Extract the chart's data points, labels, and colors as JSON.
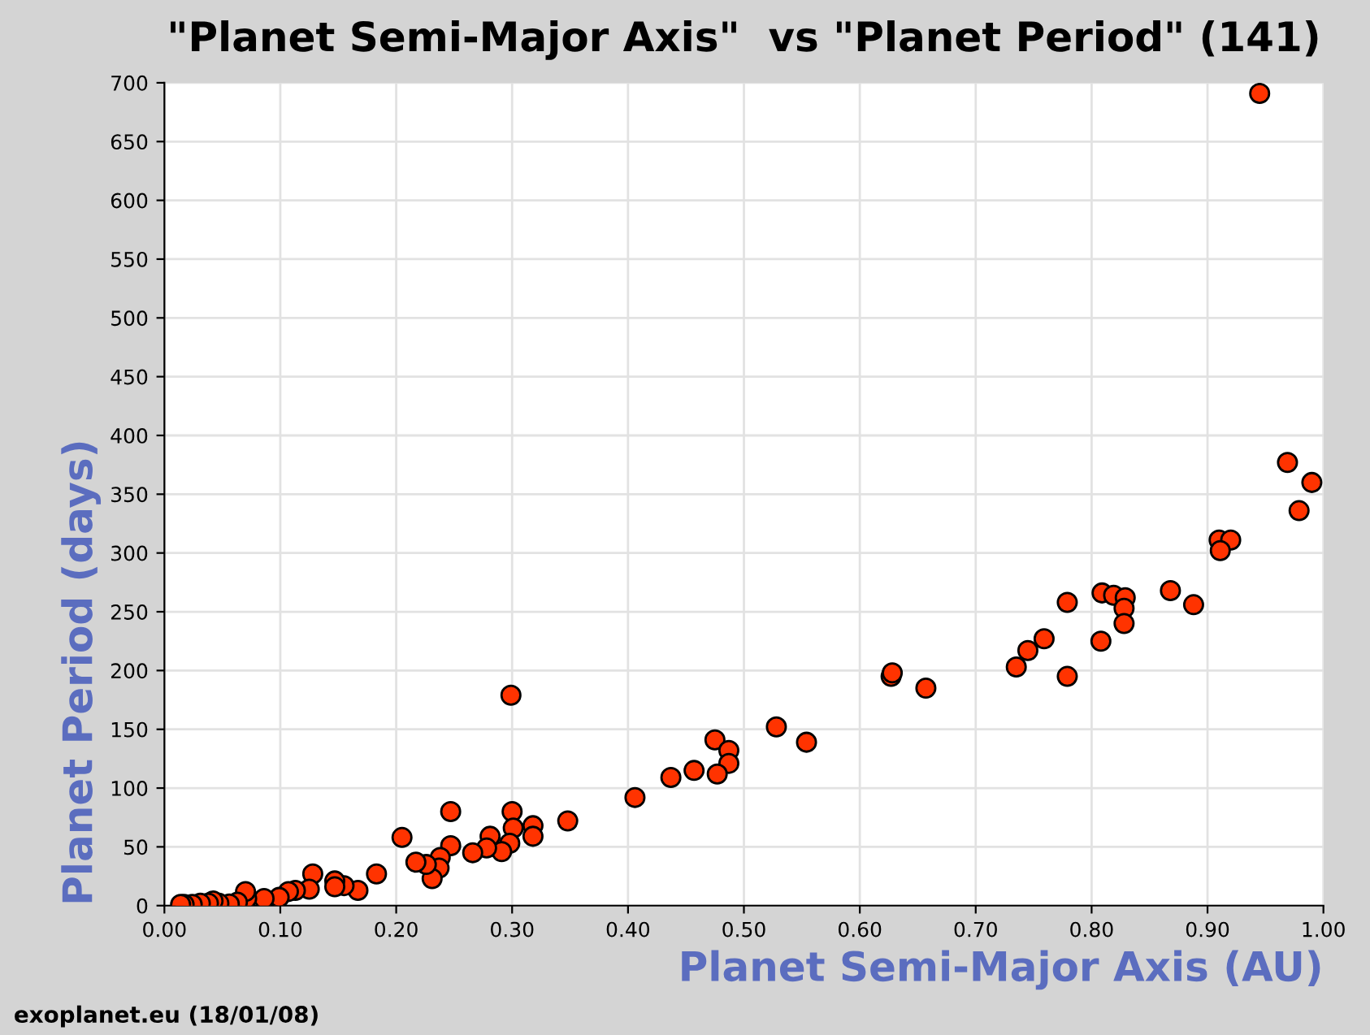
{
  "chart_data": {
    "type": "scatter",
    "title": "\"Planet Semi-Major Axis\"  vs \"Planet Period\" (141)",
    "xlabel": "Planet Semi-Major Axis (AU)",
    "ylabel": "Planet Period (days)",
    "annotations": [
      "exoplanet.eu (18/01/08)"
    ],
    "series": [
      {
        "color": "#ff3300",
        "x": [
          0.945,
          0.969,
          0.99,
          0.979,
          0.91,
          0.92,
          0.911,
          0.868,
          0.888,
          0.809,
          0.819,
          0.829,
          0.828,
          0.828,
          0.779,
          0.808,
          0.759,
          0.745,
          0.735,
          0.779,
          0.627,
          0.628,
          0.657,
          0.528,
          0.554,
          0.475,
          0.487,
          0.487,
          0.477,
          0.457,
          0.437,
          0.406,
          0.299,
          0.348,
          0.318,
          0.318,
          0.3,
          0.301,
          0.298,
          0.291,
          0.281,
          0.278,
          0.266,
          0.247,
          0.247,
          0.238,
          0.237,
          0.231,
          0.226,
          0.217,
          0.205,
          0.183,
          0.167,
          0.155,
          0.147,
          0.147,
          0.128,
          0.125,
          0.113,
          0.107,
          0.099,
          0.086,
          0.071,
          0.07,
          0.063,
          0.056,
          0.047,
          0.042,
          0.038,
          0.031,
          0.024,
          0.017,
          0.014
        ],
        "values": [
          691,
          377,
          360,
          336,
          311,
          311,
          302,
          268,
          256,
          266,
          264,
          262,
          253,
          240,
          258,
          225,
          227,
          217,
          203,
          195,
          195,
          198,
          185,
          152,
          139,
          141,
          132,
          121,
          112,
          115,
          109,
          92,
          179,
          72,
          68,
          59,
          80,
          66,
          53,
          46,
          59,
          49,
          45,
          80,
          51,
          41,
          32,
          23,
          35,
          37,
          58,
          27,
          13,
          17,
          21,
          16,
          27,
          14,
          13,
          12,
          7,
          6,
          6,
          12,
          3,
          1.4,
          2,
          4,
          2,
          2,
          1,
          1,
          1
        ]
      }
    ],
    "marker": "circle",
    "grid": true,
    "xlim": [
      0,
      1
    ],
    "xticks": [
      {
        "value": 0,
        "label": "0.00"
      },
      {
        "value": 0.1,
        "label": "0.10"
      },
      {
        "value": 0.2,
        "label": "0.20"
      },
      {
        "value": 0.3,
        "label": "0.30"
      },
      {
        "value": 0.4,
        "label": "0.40"
      },
      {
        "value": 0.5,
        "label": "0.50"
      },
      {
        "value": 0.6,
        "label": "0.60"
      },
      {
        "value": 0.7,
        "label": "0.70"
      },
      {
        "value": 0.8,
        "label": "0.80"
      },
      {
        "value": 0.9,
        "label": "0.90"
      },
      {
        "value": 1,
        "label": "1.00"
      }
    ],
    "ylim": [
      0,
      700
    ],
    "yticks": [
      0,
      50,
      100,
      150,
      200,
      250,
      300,
      350,
      400,
      450,
      500,
      550,
      600,
      650,
      700
    ]
  }
}
